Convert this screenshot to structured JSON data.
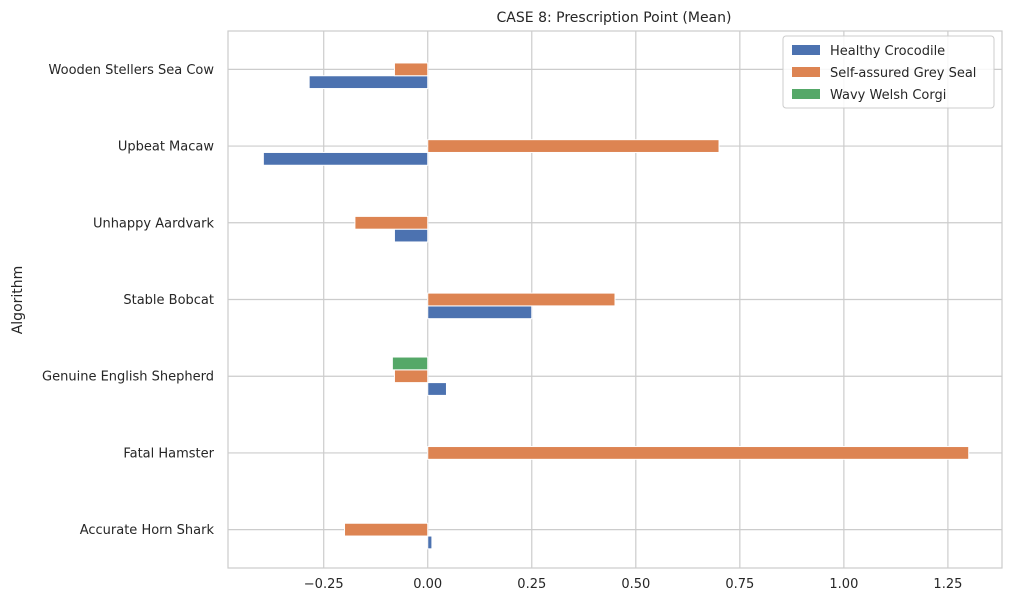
{
  "chart_data": {
    "type": "bar",
    "orientation": "horizontal",
    "title": "CASE 8: Prescription Point (Mean)",
    "xlabel": "",
    "ylabel": "Algorithm",
    "categories": [
      "Accurate Horn Shark",
      "Fatal Hamster",
      "Genuine English Shepherd",
      "Stable Bobcat",
      "Unhappy Aardvark",
      "Upbeat Macaw",
      "Wooden Stellers Sea Cow"
    ],
    "series": [
      {
        "name": "Healthy Crocodile",
        "color": "#4c72b0",
        "values": [
          0.01,
          0.0,
          0.045,
          0.25,
          -0.08,
          -0.395,
          -0.285
        ]
      },
      {
        "name": "Self-assured Grey Seal",
        "color": "#dd8452",
        "values": [
          -0.2,
          1.3,
          -0.08,
          0.45,
          -0.175,
          0.7,
          -0.08
        ]
      },
      {
        "name": "Wavy Welsh Corgi",
        "color": "#55a868",
        "values": [
          0.0,
          0.0,
          -0.085,
          0.0,
          0.0,
          0.0,
          0.0
        ]
      }
    ],
    "xlim": [
      -0.48,
      1.38
    ],
    "xticks": [
      -0.25,
      0.0,
      0.25,
      0.5,
      0.75,
      1.0,
      1.25
    ],
    "xtick_labels": [
      "−0.25",
      "0.00",
      "0.25",
      "0.50",
      "0.75",
      "1.00",
      "1.25"
    ],
    "grid": true,
    "legend_position": "top-right"
  }
}
